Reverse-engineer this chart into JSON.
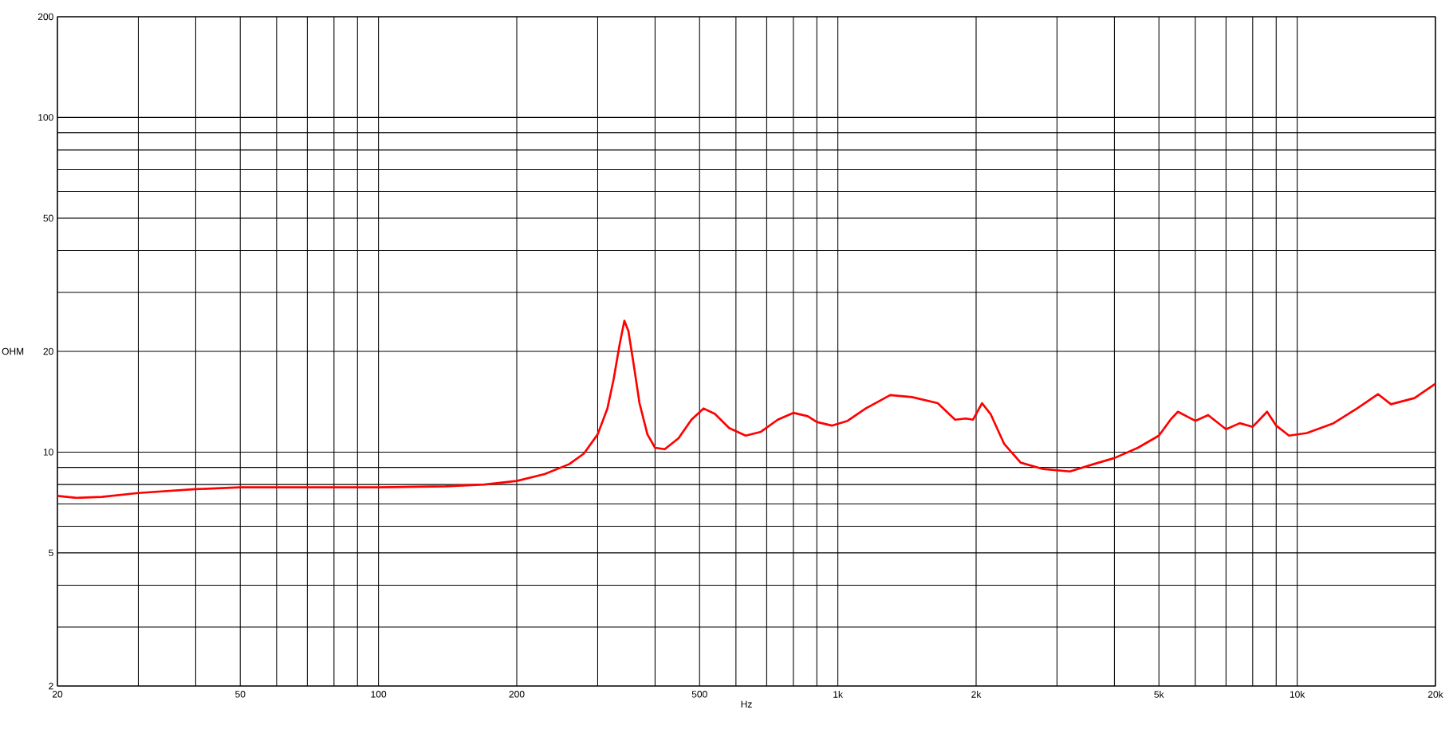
{
  "chart_data": {
    "type": "line",
    "xlabel": "Hz",
    "ylabel": "OHM",
    "log": "xy",
    "grid": true,
    "marker": "none",
    "line_style": "solid",
    "xlim": [
      20,
      20000
    ],
    "ylim": [
      2,
      200
    ],
    "xticks": [
      20,
      {
        "value": 30,
        "label": null
      },
      {
        "value": 40,
        "label": null
      },
      50,
      {
        "value": 60,
        "label": null
      },
      {
        "value": 70,
        "label": null
      },
      {
        "value": 80,
        "label": null
      },
      {
        "value": 90,
        "label": null
      },
      100,
      200,
      {
        "value": 300,
        "label": null
      },
      {
        "value": 400,
        "label": null
      },
      500,
      {
        "value": 600,
        "label": null
      },
      {
        "value": 700,
        "label": null
      },
      {
        "value": 800,
        "label": null
      },
      {
        "value": 900,
        "label": null
      },
      {
        "value": 1000,
        "label": "1k"
      },
      {
        "value": 2000,
        "label": "2k"
      },
      {
        "value": 3000,
        "label": null
      },
      {
        "value": 4000,
        "label": null
      },
      {
        "value": 5000,
        "label": "5k"
      },
      {
        "value": 6000,
        "label": null
      },
      {
        "value": 7000,
        "label": null
      },
      {
        "value": 8000,
        "label": null
      },
      {
        "value": 9000,
        "label": null
      },
      {
        "value": 10000,
        "label": "10k"
      },
      {
        "value": 20000,
        "label": "20k"
      }
    ],
    "yticks": [
      2,
      {
        "value": 3,
        "label": null
      },
      {
        "value": 4,
        "label": null
      },
      5,
      {
        "value": 6,
        "label": null
      },
      {
        "value": 7,
        "label": null
      },
      {
        "value": 8,
        "label": null
      },
      {
        "value": 9,
        "label": null
      },
      10,
      20,
      {
        "value": 30,
        "label": null
      },
      {
        "value": 40,
        "label": null
      },
      50,
      {
        "value": 60,
        "label": null
      },
      {
        "value": 70,
        "label": null
      },
      {
        "value": 80,
        "label": null
      },
      {
        "value": 90,
        "label": null
      },
      100,
      200
    ],
    "x": [
      20,
      22,
      25,
      30,
      40,
      50,
      70,
      100,
      140,
      170,
      200,
      230,
      260,
      280,
      300,
      315,
      325,
      335,
      343,
      350,
      360,
      370,
      385,
      400,
      420,
      450,
      480,
      510,
      540,
      580,
      630,
      680,
      740,
      800,
      860,
      900,
      970,
      1050,
      1150,
      1300,
      1450,
      1650,
      1800,
      1900,
      1970,
      2060,
      2150,
      2300,
      2500,
      2800,
      3200,
      3600,
      4000,
      4500,
      5000,
      5300,
      5500,
      6000,
      6400,
      7000,
      7500,
      8000,
      8600,
      9000,
      9600,
      10500,
      12000,
      13500,
      15000,
      16000,
      18000,
      20000
    ],
    "series": [
      {
        "color": "#ff0000",
        "values": [
          7.4,
          7.3,
          7.35,
          7.55,
          7.75,
          7.85,
          7.85,
          7.85,
          7.9,
          8.0,
          8.2,
          8.6,
          9.2,
          9.9,
          11.3,
          13.5,
          16.5,
          21,
          24.7,
          23,
          18,
          14,
          11.3,
          10.3,
          10.2,
          11,
          12.5,
          13.5,
          13,
          11.8,
          11.2,
          11.5,
          12.5,
          13.1,
          12.8,
          12.3,
          12,
          12.4,
          13.5,
          14.8,
          14.6,
          14,
          12.5,
          12.6,
          12.5,
          14,
          13,
          10.6,
          9.3,
          8.9,
          8.75,
          9.2,
          9.6,
          10.3,
          11.2,
          12.5,
          13.2,
          12.4,
          12.9,
          11.7,
          12.2,
          11.9,
          13.2,
          12,
          11.2,
          11.4,
          12.2,
          13.5,
          14.9,
          13.9,
          14.5,
          16
        ]
      }
    ]
  }
}
